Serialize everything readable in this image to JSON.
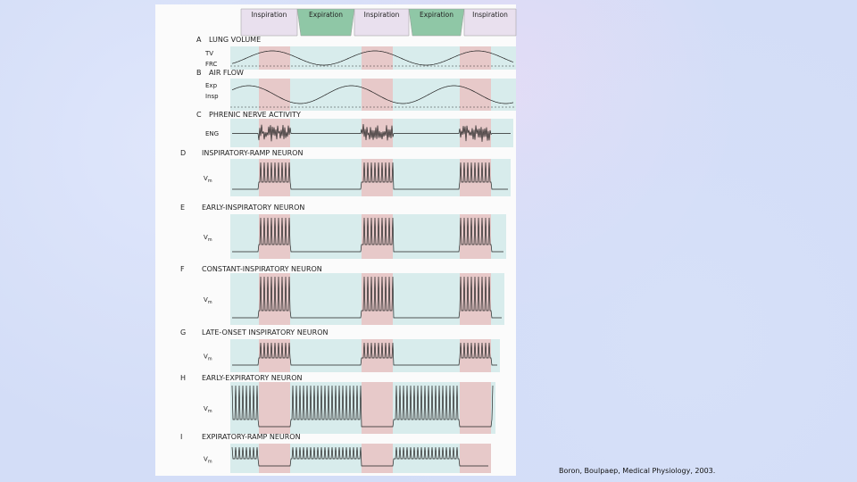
{
  "figure": {
    "phases": [
      "Inspiration",
      "Expiration",
      "Inspiration",
      "Expiration",
      "Inspiration"
    ],
    "panels": [
      {
        "letter": "A",
        "title": "LUNG VOLUME",
        "labels": [
          "TV",
          "FRC"
        ]
      },
      {
        "letter": "B",
        "title": "AIR FLOW",
        "labels": [
          "Exp",
          "Insp"
        ]
      },
      {
        "letter": "C",
        "title": "PHRENIC NERVE ACTIVITY",
        "labels": [
          "ENG"
        ]
      },
      {
        "letter": "D",
        "title": "INSPIRATORY-RAMP NEURON",
        "vm": {
          "main": "V",
          "sub": "m"
        }
      },
      {
        "letter": "E",
        "title": "EARLY-INSPIRATORY NEURON",
        "vm": {
          "main": "V",
          "sub": "m"
        }
      },
      {
        "letter": "F",
        "title": "CONSTANT-INSPIRATORY NEURON",
        "vm": {
          "main": "V",
          "sub": "m"
        }
      },
      {
        "letter": "G",
        "title": "LATE-ONSET INSPIRATORY NEURON",
        "vm": {
          "main": "V",
          "sub": "m"
        }
      },
      {
        "letter": "H",
        "title": "EARLY-EXPIRATORY NEURON",
        "vm": {
          "main": "V",
          "sub": "m"
        }
      },
      {
        "letter": "I",
        "title": "EXPIRATORY-RAMP NEURON",
        "vm": {
          "main": "V",
          "sub": "m"
        }
      }
    ]
  },
  "citation": "Boron, Boulpaep, Medical Physiology, 2003."
}
